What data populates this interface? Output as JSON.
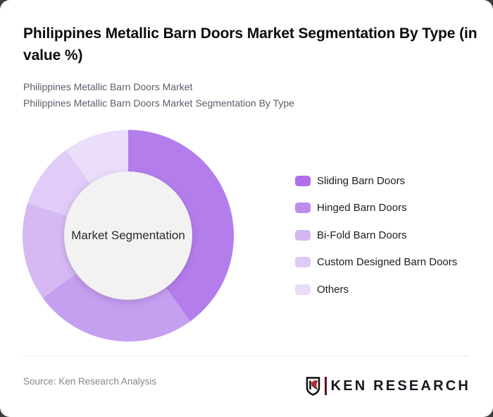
{
  "page": {
    "background": "#3d3d3d",
    "card_color": "#ffffff"
  },
  "header": {
    "title": "Philippines Metallic Barn Doors Market Segmentation By Type (in value %)",
    "subtitle_line1": "Philippines Metallic Barn Doors Market",
    "subtitle_line2": "Philippines Metallic Barn Doors Market Segmentation By Type"
  },
  "chart_data": {
    "type": "pie",
    "variant": "donut",
    "title": "Philippines Metallic Barn Doors Market Segmentation By Type (in value %)",
    "center_label": "Market Segmentation",
    "categories": [
      "Sliding Barn Doors",
      "Hinged Barn Doors",
      "Bi-Fold Barn Doors",
      "Custom Designed Barn Doors",
      "Others"
    ],
    "values": [
      40,
      25,
      15,
      10,
      10
    ],
    "unit": "percent",
    "colors": [
      "#b47dec",
      "#c59ff0",
      "#d6b9f3",
      "#e0ccf6",
      "#ebdefa"
    ],
    "legend_colors": [
      "#b06fe9",
      "#bd8cec",
      "#d3b5f2",
      "#dfc9f6",
      "#e9dcf9"
    ],
    "start_angle_deg": 0,
    "direction": "clockwise",
    "hole_radius_ratio": 0.6,
    "hole_color": "#f2f2f2",
    "legend_position": "right",
    "grid": false
  },
  "footer": {
    "source": "Source: Ken Research Analysis",
    "logo": {
      "wordmark_first": "K",
      "wordmark_rest": "EN RESEARCH",
      "red": "#c3222a",
      "dark": "#16161e"
    }
  }
}
